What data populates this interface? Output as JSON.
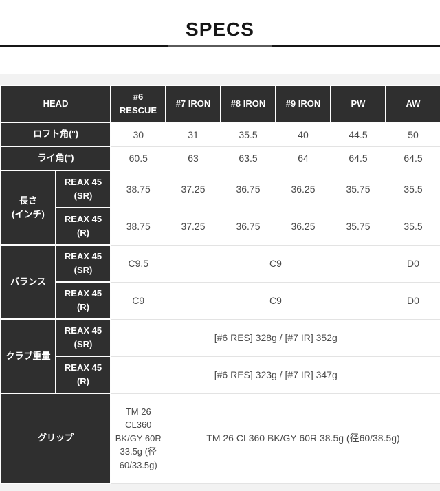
{
  "title": "SPECS",
  "colors": {
    "header_bg": "#2f2f2f",
    "section_bg": "#f2f2f2",
    "cell_line": "#e3e3e3",
    "cell_text": "#4a4a4a",
    "title_line": "#161616",
    "title_line_accent": "#5a5a5a"
  },
  "table": {
    "head": {
      "label": "HEAD",
      "columns": [
        "#6\nRESCUE",
        "#7 IRON",
        "#8 IRON",
        "#9 IRON",
        "PW",
        "AW"
      ]
    },
    "loft": {
      "label": "ロフト角(°)",
      "values": [
        "30",
        "31",
        "35.5",
        "40",
        "44.5",
        "50"
      ]
    },
    "lie": {
      "label": "ライ角(°)",
      "values": [
        "60.5",
        "63",
        "63.5",
        "64",
        "64.5",
        "64.5"
      ]
    },
    "length": {
      "label": "長さ\n(インチ)",
      "sr": {
        "shaft": "REAX 45\n(SR)",
        "values": [
          "38.75",
          "37.25",
          "36.75",
          "36.25",
          "35.75",
          "35.5"
        ]
      },
      "r": {
        "shaft": "REAX 45\n(R)",
        "values": [
          "38.75",
          "37.25",
          "36.75",
          "36.25",
          "35.75",
          "35.5"
        ]
      }
    },
    "balance": {
      "label": "バランス",
      "sr": {
        "shaft": "REAX 45\n(SR)",
        "first": "C9.5",
        "middle": "C9",
        "last": "D0"
      },
      "r": {
        "shaft": "REAX 45\n(R)",
        "first": "C9",
        "middle": "C9",
        "last": "D0"
      }
    },
    "club_weight": {
      "label": "クラブ重量",
      "sr": {
        "shaft": "REAX 45\n(SR)",
        "value": "[#6 RES] 328g / [#7 IR] 352g"
      },
      "r": {
        "shaft": "REAX 45\n(R)",
        "value": "[#6 RES] 323g / [#7 IR] 347g"
      }
    },
    "grip": {
      "label": "グリップ",
      "rescue_value": "TM 26 CL360 BK/GY 60R 33.5g (径 60/33.5g)",
      "irons_value": "TM 26 CL360 BK/GY 60R 38.5g (径60/38.5g)"
    }
  }
}
